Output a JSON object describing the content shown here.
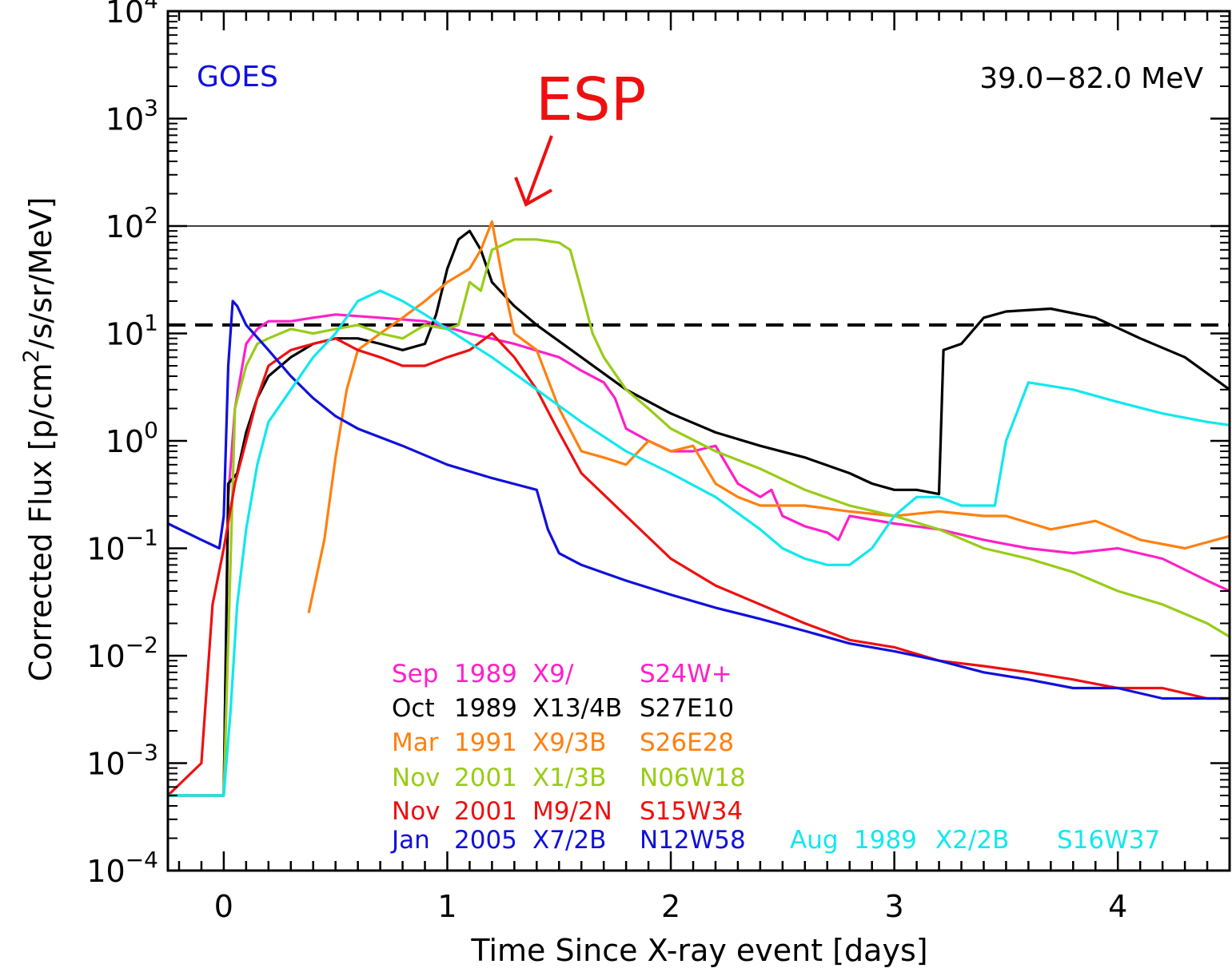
{
  "colors": {
    "magenta": "#ff20c8",
    "black": "#000000",
    "orange": "#ff8010",
    "green": "#98cc18",
    "red": "#ee1010",
    "blue": "#1010dd",
    "cyan": "#10e8ee",
    "esp": "#ee1010",
    "goes": "#1010dd"
  },
  "chart_data": {
    "type": "line",
    "xlabel": "Time Since X-ray event [days]",
    "ylabel": "Corrected Flux [p/cm²/s/sr/MeV]",
    "ylabel_parts": {
      "pre": "Corrected Flux [p/cm",
      "sup": "2",
      "post": "/s/sr/MeV]"
    },
    "xlim": [
      -0.25,
      4.5
    ],
    "ylim": [
      0.0001,
      10000
    ],
    "yscale": "log",
    "x_ticks": [
      "0",
      "1",
      "2",
      "3",
      "4"
    ],
    "y_ticks": [
      {
        "base": "10",
        "exp": "−4"
      },
      {
        "base": "10",
        "exp": "−3"
      },
      {
        "base": "10",
        "exp": "−2"
      },
      {
        "base": "10",
        "exp": "−1"
      },
      {
        "base": "10",
        "exp": "0"
      },
      {
        "base": "10",
        "exp": "1"
      },
      {
        "base": "10",
        "exp": "2"
      },
      {
        "base": "10",
        "exp": "3"
      },
      {
        "base": "10",
        "exp": "4"
      }
    ],
    "reference_lines": [
      {
        "y": 100,
        "style": "solid"
      },
      {
        "y": 12,
        "style": "dashed"
      }
    ],
    "annotations": {
      "instrument": "GOES",
      "energy": "39.0−82.0 MeV",
      "esp": "ESP"
    },
    "series": [
      {
        "name": "Sep 1989 X9/ S24W+",
        "legend": [
          "Sep",
          "1989",
          "X9/",
          "S24W+"
        ],
        "color": "magenta",
        "x": [
          -0.25,
          0.0,
          0.02,
          0.05,
          0.1,
          0.15,
          0.2,
          0.3,
          0.4,
          0.5,
          0.7,
          0.9,
          1.1,
          1.3,
          1.5,
          1.6,
          1.7,
          1.75,
          1.8,
          1.9,
          2.0,
          2.1,
          2.2,
          2.3,
          2.4,
          2.45,
          2.5,
          2.6,
          2.7,
          2.75,
          2.8,
          3.0,
          3.2,
          3.4,
          3.6,
          3.8,
          4.0,
          4.2,
          4.4,
          4.5
        ],
        "y": [
          0.0005,
          0.0005,
          0.3,
          2,
          8,
          11,
          13,
          13,
          14,
          15,
          14,
          13,
          10,
          8,
          6,
          4.5,
          3.5,
          2.5,
          1.3,
          1.0,
          0.8,
          0.8,
          0.9,
          0.4,
          0.3,
          0.35,
          0.2,
          0.16,
          0.14,
          0.12,
          0.2,
          0.17,
          0.15,
          0.12,
          0.1,
          0.09,
          0.1,
          0.08,
          0.05,
          0.04
        ]
      },
      {
        "name": "Oct 1989 X13/4B S27E10",
        "legend": [
          "Oct",
          "1989",
          "X13/4B",
          "S27E10"
        ],
        "color": "black",
        "x": [
          -0.25,
          -0.05,
          0.0,
          0.02,
          0.06,
          0.1,
          0.15,
          0.2,
          0.3,
          0.4,
          0.5,
          0.6,
          0.7,
          0.8,
          0.9,
          0.95,
          1.0,
          1.05,
          1.1,
          1.15,
          1.2,
          1.3,
          1.4,
          1.6,
          1.8,
          2.0,
          2.2,
          2.4,
          2.6,
          2.8,
          2.9,
          3.0,
          3.1,
          3.2,
          3.22,
          3.3,
          3.4,
          3.5,
          3.7,
          3.9,
          4.1,
          4.3,
          4.5
        ],
        "y": [
          0.0005,
          0.0005,
          0.0005,
          0.4,
          0.5,
          1.2,
          2.5,
          4,
          6,
          8,
          9,
          9,
          8,
          7,
          8,
          15,
          40,
          75,
          90,
          60,
          30,
          18,
          12,
          6,
          3,
          1.8,
          1.2,
          0.9,
          0.7,
          0.5,
          0.4,
          0.35,
          0.35,
          0.32,
          7,
          8,
          14,
          16,
          17,
          14,
          9,
          6,
          3
        ]
      },
      {
        "name": "Mar 1991 X9/3B S26E28",
        "legend": [
          "Mar",
          "1991",
          "X9/3B",
          "S26E28"
        ],
        "color": "orange",
        "x": [
          0.38,
          0.45,
          0.5,
          0.55,
          0.6,
          0.7,
          0.8,
          0.9,
          1.0,
          1.1,
          1.15,
          1.2,
          1.25,
          1.3,
          1.4,
          1.5,
          1.6,
          1.7,
          1.8,
          1.9,
          2.0,
          2.1,
          2.2,
          2.3,
          2.4,
          2.6,
          2.8,
          3.0,
          3.2,
          3.4,
          3.5,
          3.7,
          3.9,
          4.1,
          4.3,
          4.5
        ],
        "y": [
          0.025,
          0.12,
          0.7,
          3,
          7,
          10,
          14,
          20,
          30,
          40,
          60,
          110,
          30,
          10,
          7,
          2,
          0.8,
          0.7,
          0.6,
          1.0,
          0.8,
          0.9,
          0.4,
          0.3,
          0.25,
          0.25,
          0.22,
          0.2,
          0.22,
          0.2,
          0.2,
          0.15,
          0.18,
          0.12,
          0.1,
          0.13
        ]
      },
      {
        "name": "Nov 2001 X1/3B N06W18",
        "legend": [
          "Nov",
          "2001",
          "X1/3B",
          "N06W18"
        ],
        "color": "green",
        "x": [
          -0.25,
          0.0,
          0.05,
          0.1,
          0.15,
          0.2,
          0.3,
          0.4,
          0.5,
          0.6,
          0.7,
          0.8,
          0.9,
          1.0,
          1.05,
          1.1,
          1.15,
          1.2,
          1.3,
          1.4,
          1.5,
          1.55,
          1.6,
          1.65,
          1.7,
          1.8,
          1.9,
          2.0,
          2.2,
          2.4,
          2.6,
          2.8,
          3.0,
          3.2,
          3.4,
          3.6,
          3.8,
          4.0,
          4.2,
          4.4,
          4.5
        ],
        "y": [
          0.0005,
          0.0005,
          2,
          5,
          8,
          9,
          11,
          10,
          11,
          12,
          10,
          9,
          12,
          11,
          12,
          30,
          25,
          60,
          75,
          75,
          70,
          60,
          25,
          10,
          6,
          3,
          2,
          1.3,
          0.8,
          0.55,
          0.35,
          0.25,
          0.2,
          0.15,
          0.1,
          0.08,
          0.06,
          0.04,
          0.03,
          0.02,
          0.015
        ]
      },
      {
        "name": "Nov 2001 M9/2N S15W34",
        "legend": [
          "Nov",
          "2001",
          "M9/2N",
          "S15W34"
        ],
        "color": "red",
        "x": [
          -0.25,
          -0.1,
          -0.05,
          0.0,
          0.05,
          0.1,
          0.15,
          0.2,
          0.3,
          0.4,
          0.5,
          0.6,
          0.7,
          0.8,
          0.9,
          1.0,
          1.1,
          1.2,
          1.3,
          1.4,
          1.5,
          1.6,
          1.8,
          2.0,
          2.2,
          2.4,
          2.6,
          2.8,
          3.0,
          3.2,
          3.4,
          3.6,
          3.8,
          4.0,
          4.2,
          4.4,
          4.5
        ],
        "y": [
          0.0005,
          0.001,
          0.03,
          0.1,
          0.4,
          1,
          2.5,
          5,
          7,
          8,
          9,
          7,
          6,
          5,
          5,
          6,
          7,
          10,
          6,
          3,
          1.2,
          0.5,
          0.2,
          0.08,
          0.045,
          0.03,
          0.02,
          0.014,
          0.012,
          0.009,
          0.008,
          0.007,
          0.006,
          0.005,
          0.005,
          0.004,
          0.004
        ]
      },
      {
        "name": "Jan 2005 X7/2B N12W58",
        "legend": [
          "Jan",
          "2005",
          "X7/2B",
          "N12W58"
        ],
        "color": "blue",
        "x": [
          -0.25,
          -0.1,
          -0.02,
          0.0,
          0.02,
          0.04,
          0.06,
          0.1,
          0.2,
          0.3,
          0.4,
          0.5,
          0.6,
          0.8,
          1.0,
          1.2,
          1.4,
          1.45,
          1.5,
          1.6,
          1.8,
          2.0,
          2.2,
          2.4,
          2.6,
          2.8,
          3.0,
          3.2,
          3.4,
          3.6,
          3.8,
          4.0,
          4.2,
          4.4,
          4.5
        ],
        "y": [
          0.17,
          0.12,
          0.1,
          0.2,
          5,
          20,
          18,
          12,
          7,
          4,
          2.5,
          1.7,
          1.3,
          0.9,
          0.6,
          0.45,
          0.35,
          0.15,
          0.09,
          0.07,
          0.05,
          0.037,
          0.028,
          0.022,
          0.017,
          0.013,
          0.011,
          0.009,
          0.007,
          0.006,
          0.005,
          0.005,
          0.004,
          0.004,
          0.004
        ]
      },
      {
        "name": "Aug 1989 X2/2B S16W37",
        "legend": [
          "Aug",
          "1989",
          "X2/2B",
          "S16W37"
        ],
        "color": "cyan",
        "x": [
          -0.25,
          0.0,
          0.03,
          0.06,
          0.1,
          0.15,
          0.2,
          0.3,
          0.4,
          0.5,
          0.6,
          0.7,
          0.8,
          0.9,
          1.0,
          1.2,
          1.4,
          1.6,
          1.8,
          2.0,
          2.2,
          2.4,
          2.5,
          2.6,
          2.7,
          2.8,
          2.9,
          3.0,
          3.1,
          3.2,
          3.3,
          3.45,
          3.5,
          3.6,
          3.8,
          4.0,
          4.2,
          4.4,
          4.5
        ],
        "y": [
          0.0005,
          0.0005,
          0.003,
          0.03,
          0.15,
          0.6,
          1.5,
          3,
          6,
          10,
          20,
          25,
          20,
          15,
          11,
          6,
          3,
          1.5,
          0.8,
          0.5,
          0.3,
          0.15,
          0.1,
          0.08,
          0.07,
          0.07,
          0.1,
          0.2,
          0.3,
          0.3,
          0.25,
          0.25,
          1.0,
          3.5,
          3,
          2.3,
          1.8,
          1.5,
          1.4
        ]
      }
    ]
  }
}
